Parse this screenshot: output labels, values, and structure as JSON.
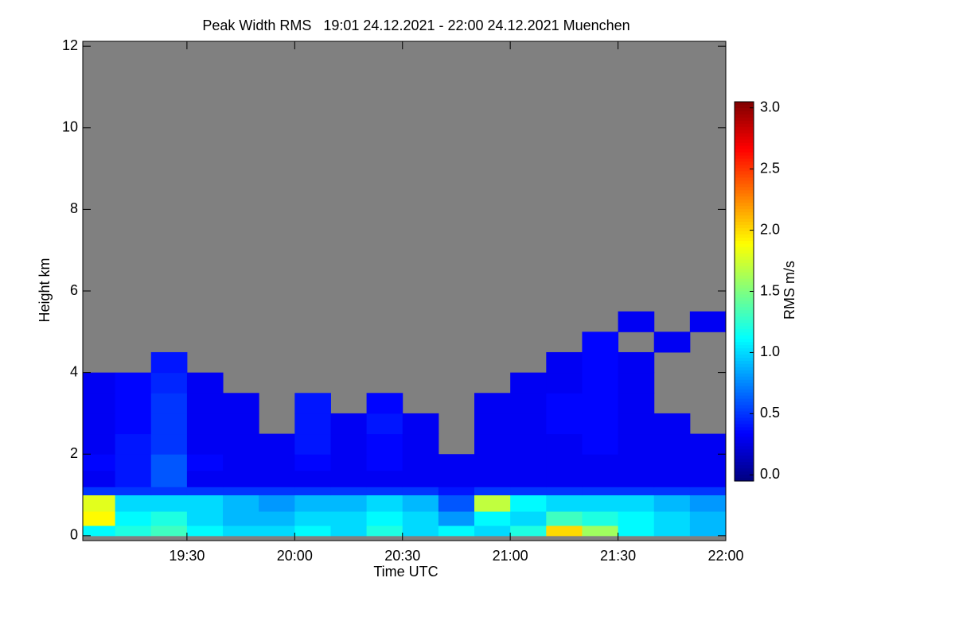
{
  "chart_data": {
    "type": "heatmap",
    "title": "Peak Width RMS   19:01 24.12.2021 - 22:00 24.12.2021 Muenchen",
    "x_label": "Time UTC",
    "y_label": "Height km",
    "colorbar_label": "RMS m/s",
    "colormap": "jet",
    "missing_color": "#808080",
    "x": [
      19.0167,
      19.1667,
      19.3333,
      19.5,
      19.6667,
      19.8333,
      20.0,
      20.1667,
      20.3333,
      20.5,
      20.6667,
      20.8333,
      21.0,
      21.1667,
      21.3333,
      21.5,
      21.6667,
      21.8333,
      22.0
    ],
    "y": [
      0,
      0.25,
      0.6,
      1.0,
      1.2,
      1.6,
      2.0,
      2.5,
      3.0,
      3.5,
      4.0,
      4.5,
      5.0,
      5.5
    ],
    "z": [
      [
        1.1,
        1.2,
        1.3,
        1.1,
        1.0,
        1.0,
        1.1,
        1.0,
        1.2,
        1.0,
        1.1,
        1.0,
        1.2,
        2.0,
        1.6,
        1.1,
        1.0,
        0.9
      ],
      [
        1.9,
        1.1,
        1.2,
        1.0,
        0.9,
        0.9,
        1.0,
        1.0,
        1.1,
        1.0,
        0.8,
        1.1,
        1.0,
        1.3,
        1.2,
        1.1,
        1.0,
        0.9
      ],
      [
        1.8,
        1.0,
        1.0,
        1.0,
        0.9,
        0.8,
        0.9,
        0.9,
        1.0,
        0.9,
        0.6,
        1.7,
        1.1,
        1.0,
        1.0,
        1.0,
        0.9,
        0.8
      ],
      [
        0.5,
        0.5,
        0.5,
        0.5,
        0.5,
        0.5,
        0.5,
        0.5,
        0.5,
        0.5,
        0.4,
        0.5,
        0.5,
        0.5,
        0.5,
        0.5,
        0.5,
        0.5
      ],
      [
        0.3,
        0.4,
        0.6,
        0.3,
        0.3,
        0.3,
        0.3,
        0.3,
        0.3,
        0.3,
        0.3,
        0.3,
        0.3,
        0.3,
        0.3,
        0.3,
        0.3,
        0.3
      ],
      [
        0.35,
        0.4,
        0.6,
        0.35,
        0.3,
        0.3,
        0.35,
        0.3,
        0.35,
        0.3,
        0.3,
        0.3,
        0.3,
        0.3,
        0.3,
        0.3,
        0.3,
        0.3
      ],
      [
        0.3,
        0.4,
        0.5,
        0.3,
        0.3,
        0.3,
        0.4,
        0.3,
        0.35,
        0.3,
        null,
        0.3,
        0.3,
        0.3,
        0.35,
        0.3,
        0.3,
        0.3
      ],
      [
        0.3,
        0.35,
        0.5,
        0.3,
        0.3,
        null,
        0.4,
        0.3,
        0.4,
        0.3,
        null,
        0.3,
        0.3,
        0.35,
        0.35,
        0.3,
        0.3,
        null
      ],
      [
        0.3,
        0.35,
        0.5,
        0.3,
        0.3,
        null,
        0.4,
        null,
        0.35,
        null,
        null,
        0.3,
        0.3,
        0.35,
        0.35,
        0.3,
        null,
        null
      ],
      [
        0.3,
        0.35,
        0.45,
        0.3,
        null,
        null,
        null,
        null,
        null,
        null,
        null,
        null,
        0.3,
        0.3,
        0.35,
        0.3,
        null,
        null
      ],
      [
        null,
        null,
        0.4,
        null,
        null,
        null,
        null,
        null,
        null,
        null,
        null,
        null,
        null,
        0.3,
        0.35,
        0.3,
        null,
        null
      ],
      [
        null,
        null,
        null,
        null,
        null,
        null,
        null,
        null,
        null,
        null,
        null,
        null,
        null,
        null,
        0.35,
        null,
        0.3,
        null
      ],
      [
        null,
        null,
        null,
        null,
        null,
        null,
        null,
        null,
        null,
        null,
        null,
        null,
        null,
        null,
        null,
        0.3,
        null,
        0.3
      ]
    ],
    "xlim": [
      19.0167,
      22.0
    ],
    "xticks": [
      {
        "value": 19.5,
        "label": "19:30"
      },
      {
        "value": 20.0,
        "label": "20:00"
      },
      {
        "value": 20.5,
        "label": "20:30"
      },
      {
        "value": 21.0,
        "label": "21:00"
      },
      {
        "value": 21.5,
        "label": "21:30"
      },
      {
        "value": 22.0,
        "label": "22:00"
      }
    ],
    "ylim": [
      -0.12,
      12.12
    ],
    "yticks": [
      0,
      2,
      4,
      6,
      8,
      10,
      12
    ],
    "clim": [
      -0.05,
      3.05
    ],
    "cticks": [
      {
        "value": 0,
        "label": "0.0"
      },
      {
        "value": 0.5,
        "label": "0.5"
      },
      {
        "value": 1,
        "label": "1.0"
      },
      {
        "value": 1.5,
        "label": "1.5"
      },
      {
        "value": 2,
        "label": "2.0"
      },
      {
        "value": 2.5,
        "label": "2.5"
      },
      {
        "value": 3,
        "label": "3.0"
      }
    ]
  }
}
